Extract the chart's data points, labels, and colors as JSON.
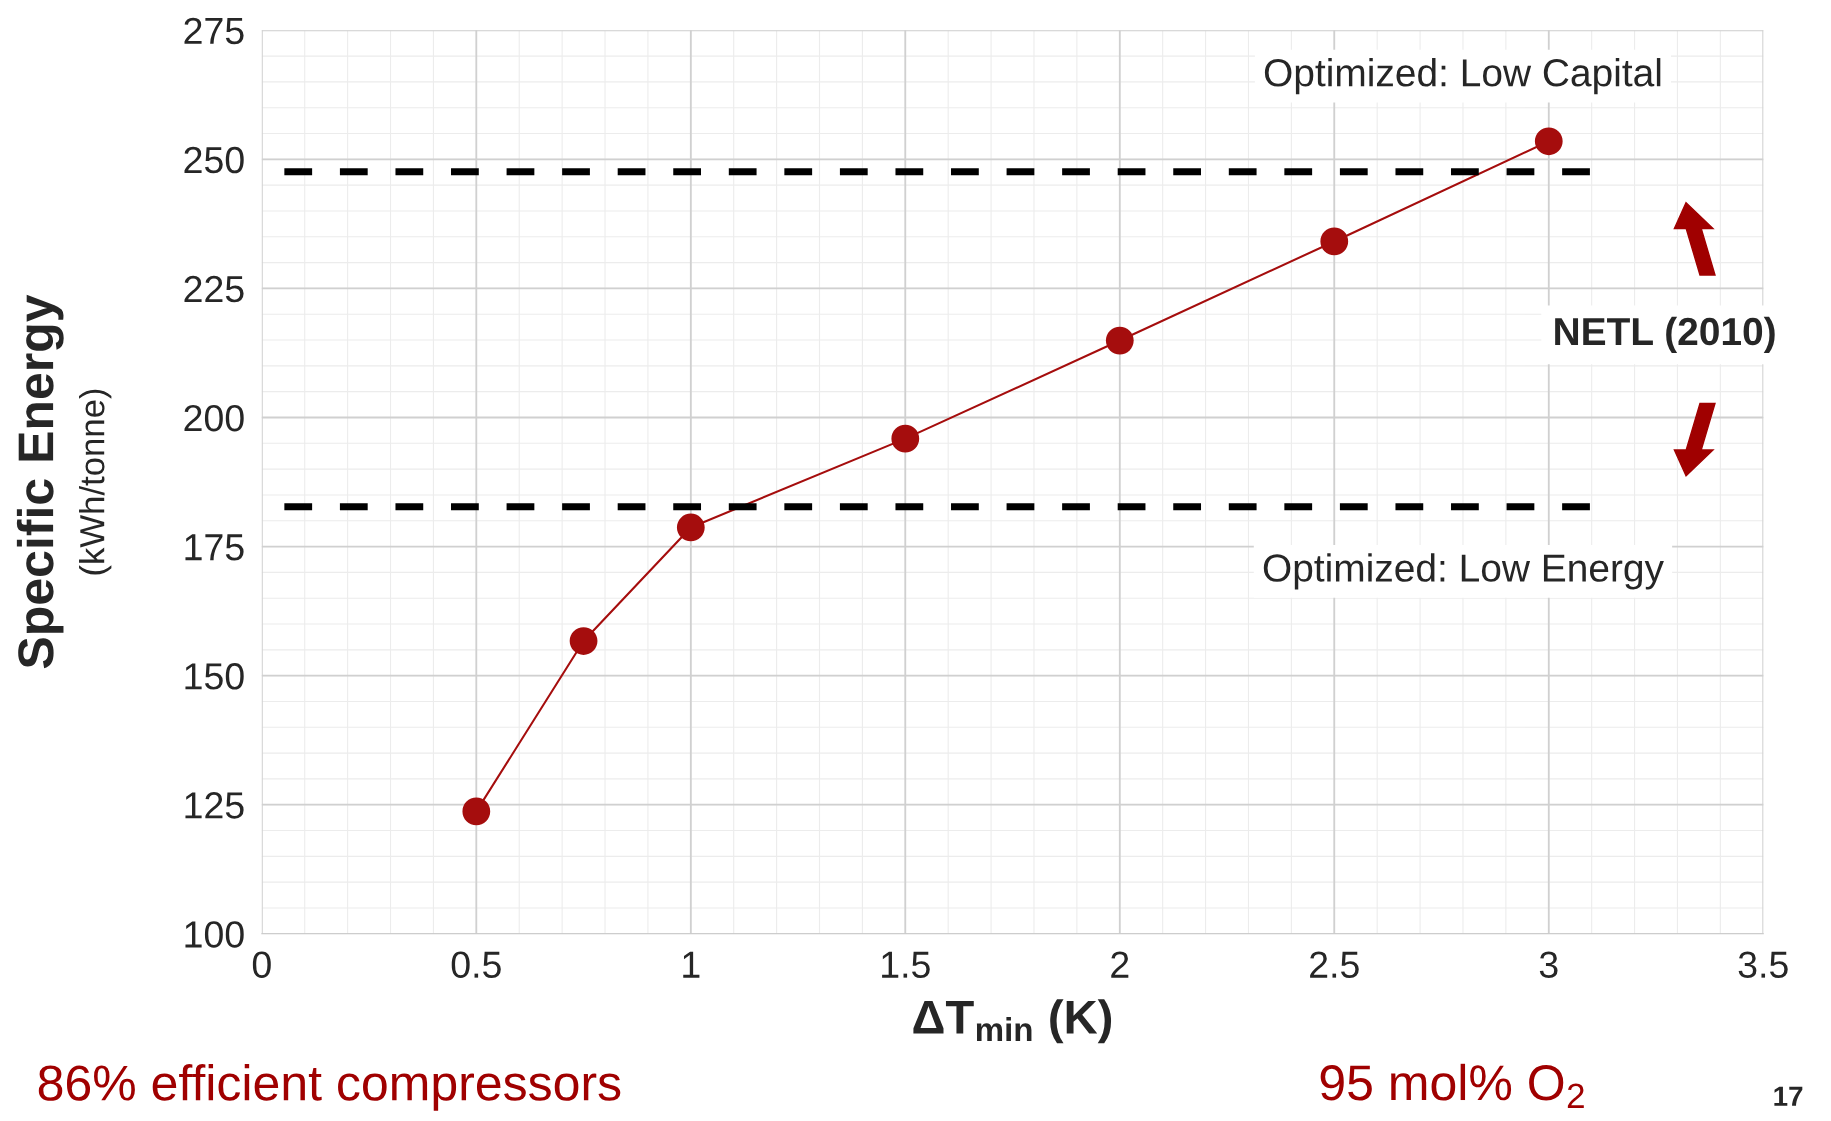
{
  "chart_data": {
    "type": "line",
    "xlabel": "ΔT$_{min}$ (K)",
    "ylabel": "Specific Energy\n(kWh/tonne)",
    "x": [
      0.5,
      0.75,
      1,
      1.5,
      2,
      2.5,
      3
    ],
    "series": [
      {
        "color": "#a50d0d",
        "values": [
          123.7,
          156.7,
          178.7,
          195.9,
          214.9,
          234.1,
          253.5
        ]
      }
    ],
    "marker": "circle",
    "line_style": "solid",
    "xlim": [
      0,
      3.5
    ],
    "xticks": [
      0,
      0.5,
      1,
      1.5,
      2,
      2.5,
      3,
      3.5
    ],
    "ylim": [
      100,
      275
    ],
    "yticks": [
      100,
      125,
      150,
      175,
      200,
      225,
      250,
      275
    ],
    "grid": true,
    "ref_lines": [
      {
        "axis": "y",
        "value": 247.6,
        "label": "Optimized: Low Capital",
        "color": "#000000",
        "line_style": "dashed"
      },
      {
        "axis": "y",
        "value": 182.7,
        "label": "Optimized: Low Energy",
        "color": "#000000",
        "line_style": "dashed"
      }
    ],
    "annotations": [
      "NETL (2010)",
      "86% efficient compressors",
      "95 mol% O$_{2}$",
      "17"
    ]
  }
}
